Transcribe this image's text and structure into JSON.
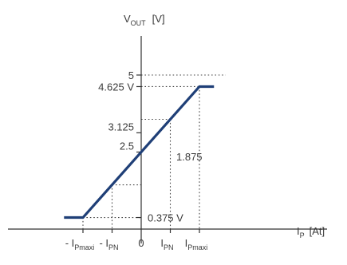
{
  "chart_data": {
    "type": "line",
    "ylabel": {
      "main": "V",
      "sub": "OUT",
      "unit": "[V]"
    },
    "xlabel": {
      "main": "I",
      "sub": "P",
      "unit": "[At]"
    },
    "xlim": [
      -3.0,
      3.0
    ],
    "ylim": [
      0,
      5.6
    ],
    "x_ticks": [
      {
        "value": -2,
        "prefix": "- I",
        "sub": "Pmaxi"
      },
      {
        "value": -1,
        "prefix": "- I",
        "sub": "PN"
      },
      {
        "value": 0,
        "prefix": "0",
        "sub": ""
      },
      {
        "value": 1,
        "prefix": "I",
        "sub": "PN"
      },
      {
        "value": 2,
        "prefix": "I",
        "sub": "Pmaxi"
      }
    ],
    "y_ticks": [
      {
        "value": 5,
        "label": "5"
      },
      {
        "value": 4.625,
        "label": "4.625 V"
      },
      {
        "value": 3.125,
        "label": "3.125"
      },
      {
        "value": 2.5,
        "label": "2.5"
      },
      {
        "value": 0.375,
        "label": "0.375 V"
      }
    ],
    "annotations": [
      {
        "text": "1.875"
      }
    ],
    "series": [
      {
        "color": "#1f3f77",
        "points": [
          [
            -2.65,
            0.375
          ],
          [
            -2,
            0.375
          ],
          [
            2,
            4.625
          ],
          [
            2.5,
            4.625
          ]
        ]
      }
    ]
  }
}
